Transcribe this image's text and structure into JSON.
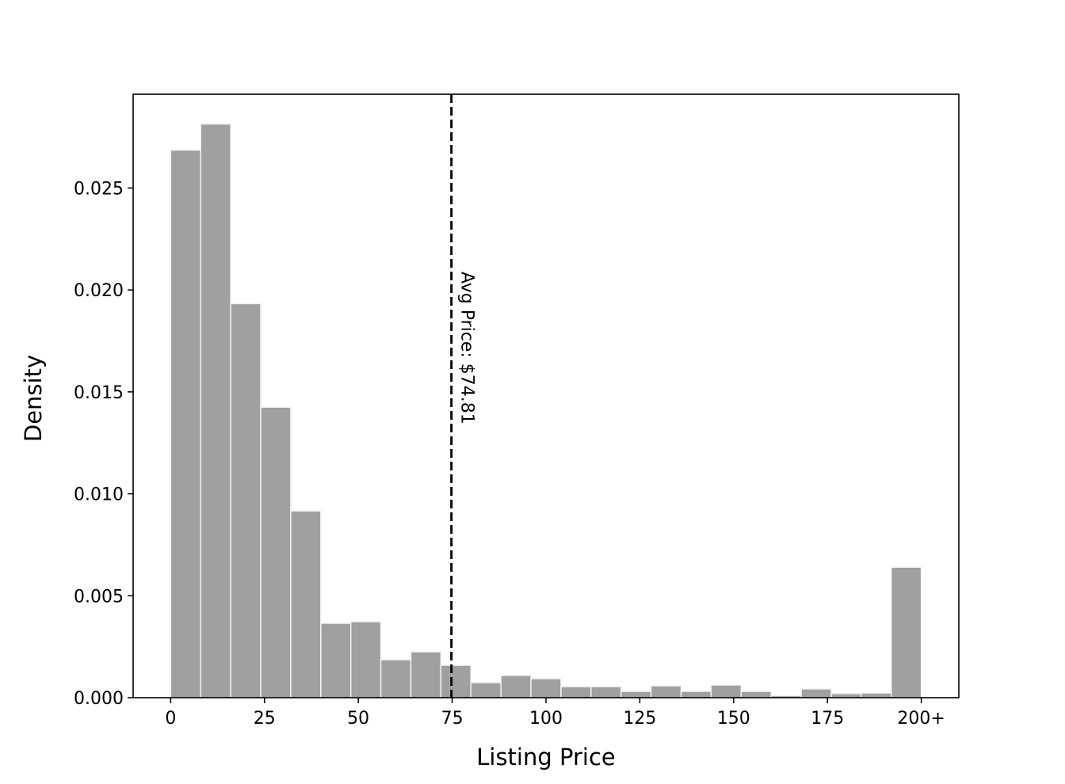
{
  "chart_data": {
    "type": "histogram",
    "xlabel": "Listing Price",
    "ylabel": "Density",
    "bins": [
      0,
      8,
      16,
      24,
      32,
      40,
      48,
      56,
      64,
      72,
      80,
      88,
      96,
      104,
      112,
      120,
      128,
      136,
      144,
      152,
      160,
      168,
      176,
      184,
      192,
      200
    ],
    "values": [
      0.02686,
      0.02814,
      0.01933,
      0.01425,
      0.00916,
      0.00365,
      0.00373,
      0.00186,
      0.00225,
      0.00159,
      0.00074,
      0.00109,
      0.00093,
      0.00054,
      0.00054,
      0.00031,
      0.00058,
      0.00031,
      0.00062,
      0.00031,
      0.0001,
      0.00043,
      0.0002,
      0.00023,
      0.0064
    ],
    "color": "#a0a0a0",
    "xlim": [
      -10,
      210
    ],
    "ylim": [
      0,
      0.0296
    ],
    "xticks": [
      0,
      25,
      50,
      75,
      100,
      125,
      150,
      175,
      {
        "value": 200,
        "label": "200+"
      }
    ],
    "yticks": [
      {
        "value": 0,
        "label": "0.000"
      },
      {
        "value": 0.005,
        "label": "0.005"
      },
      {
        "value": 0.01,
        "label": "0.010"
      },
      {
        "value": 0.015,
        "label": "0.015"
      },
      {
        "value": 0.02,
        "label": "0.020"
      },
      {
        "value": 0.025,
        "label": "0.025"
      }
    ],
    "avg_line": {
      "value": 74.81,
      "label": "Avg Price: $74.81"
    }
  }
}
